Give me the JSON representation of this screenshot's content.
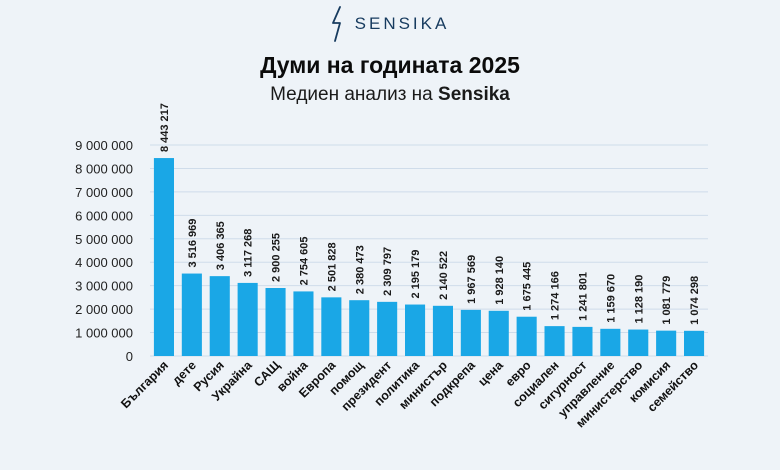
{
  "brand": {
    "name": "SENSIKA",
    "icon": "sensika-logo-icon",
    "color": "#173b5f"
  },
  "header": {
    "title": "Думи на годината 2025",
    "subtitle_prefix": "Медиен анализ на",
    "subtitle_brand": "Sensika"
  },
  "colors": {
    "bar": "#1aa7e6",
    "grid": "#cfdcea",
    "background": "#eef3f8"
  },
  "chart_data": {
    "type": "bar",
    "categories": [
      "България",
      "дете",
      "Русия",
      "Украйна",
      "САЩ",
      "война",
      "Европа",
      "помощ",
      "президент",
      "политика",
      "министър",
      "подкрепа",
      "цена",
      "евро",
      "социален",
      "сигурност",
      "управление",
      "министерство",
      "комисия",
      "семейство"
    ],
    "values": [
      8443217,
      3516969,
      3406365,
      3117268,
      2900255,
      2754605,
      2501828,
      2380473,
      2309797,
      2195179,
      2140522,
      1967569,
      1928140,
      1675445,
      1274166,
      1241801,
      1159670,
      1128190,
      1081779,
      1074298
    ],
    "value_labels": [
      "8 443 217",
      "3 516 969",
      "3 406 365",
      "3 117 268",
      "2 900 255",
      "2 754 605",
      "2 501 828",
      "2 380 473",
      "2 309 797",
      "2 195 179",
      "2 140 522",
      "1 967 569",
      "1 928 140",
      "1 675 445",
      "1 274 166",
      "1 241 801",
      "1 159 670",
      "1 128 190",
      "1 081 779",
      "1 074 298"
    ],
    "yticks": [
      0,
      1000000,
      2000000,
      3000000,
      4000000,
      5000000,
      6000000,
      7000000,
      8000000,
      9000000
    ],
    "ytick_labels": [
      "0",
      "1 000 000",
      "2 000 000",
      "3 000 000",
      "4 000 000",
      "5 000 000",
      "6 000 000",
      "7 000 000",
      "8 000 000",
      "9 000 000"
    ],
    "ylim": [
      0,
      9000000
    ],
    "grid": true,
    "legend": "none"
  }
}
